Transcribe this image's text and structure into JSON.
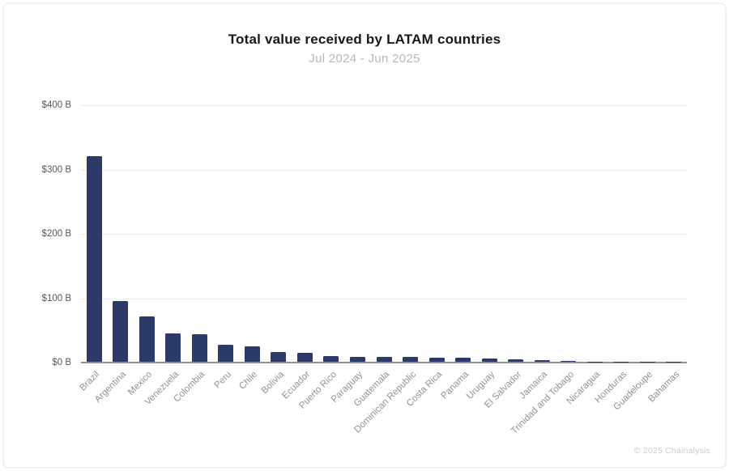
{
  "chart": {
    "title": "Total value received by LATAM countries",
    "subtitle": "Jul 2024 - Jun 2025"
  },
  "footer": {
    "copyright": "© 2025 Chainalysis"
  },
  "colors": {
    "bar": "#2b3a68",
    "title": "#17181a",
    "subtitle": "#b4b7bc",
    "y_tick_label": "#54575d",
    "x_tick_label": "#8f9298",
    "gridline": "#e9eaec",
    "axis_line": "#8d9095",
    "copyright": "#c9cbce"
  },
  "chart_data": {
    "type": "bar",
    "title": "Total value received by LATAM countries",
    "subtitle": "Jul 2024 - Jun 2025",
    "xlabel": "",
    "ylabel": "",
    "unit": "USD billions",
    "ylim": [
      0,
      400
    ],
    "grid": true,
    "legend": false,
    "bar_color": "#2b3a68",
    "yticks": [
      {
        "label": "$0 B",
        "value": 0
      },
      {
        "label": "$100 B",
        "value": 100
      },
      {
        "label": "$200 B",
        "value": 200
      },
      {
        "label": "$300 B",
        "value": 300
      },
      {
        "label": "$400 B",
        "value": 400
      }
    ],
    "categories": [
      "Brazil",
      "Argentina",
      "Mexico",
      "Venezuela",
      "Colombia",
      "Peru",
      "Chile",
      "Bolivia",
      "Ecuador",
      "Puerto Rico",
      "Paraguay",
      "Guatemala",
      "Dominican Republic",
      "Costa Rica",
      "Panama",
      "Uruguay",
      "El Salvador",
      "Jamaica",
      "Trinidad and Tobago",
      "Nicaragua",
      "Honduras",
      "Guadeloupe",
      "Bahamas"
    ],
    "values": [
      319,
      94,
      70,
      44,
      43,
      26.5,
      24,
      14.5,
      13.5,
      8.5,
      8,
      7.5,
      7,
      6.5,
      6,
      4.5,
      4,
      2.5,
      0.8,
      0.6,
      0.5,
      0.3,
      0.2
    ]
  }
}
